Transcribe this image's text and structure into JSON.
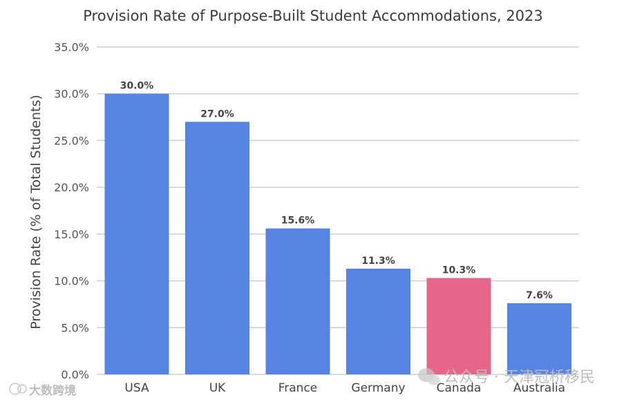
{
  "chart_data": {
    "type": "bar",
    "title": "Provision Rate of Purpose-Built Student Accommodations, 2023",
    "xlabel": "",
    "ylabel": "Provision Rate (% of Total Students)",
    "categories": [
      "USA",
      "UK",
      "France",
      "Germany",
      "Canada",
      "Australia"
    ],
    "values": [
      30.0,
      27.0,
      15.6,
      11.3,
      10.3,
      7.6
    ],
    "value_labels": [
      "30.0%",
      "27.0%",
      "15.6%",
      "11.3%",
      "10.3%",
      "7.6%"
    ],
    "ylim": [
      0,
      35
    ],
    "yticks": [
      0,
      5,
      10,
      15,
      20,
      25,
      30,
      35
    ],
    "ytick_labels": [
      "0.0%",
      "5.0%",
      "10.0%",
      "15.0%",
      "20.0%",
      "25.0%",
      "30.0%",
      "35.0%"
    ],
    "grid": true,
    "legend": "none",
    "colors": {
      "default": "#5584e2",
      "highlight": "#e5668a",
      "highlight_category": "Canada"
    }
  },
  "watermarks": {
    "left": "大数跨境",
    "right": "公众号 · 天津冠桥移民"
  }
}
